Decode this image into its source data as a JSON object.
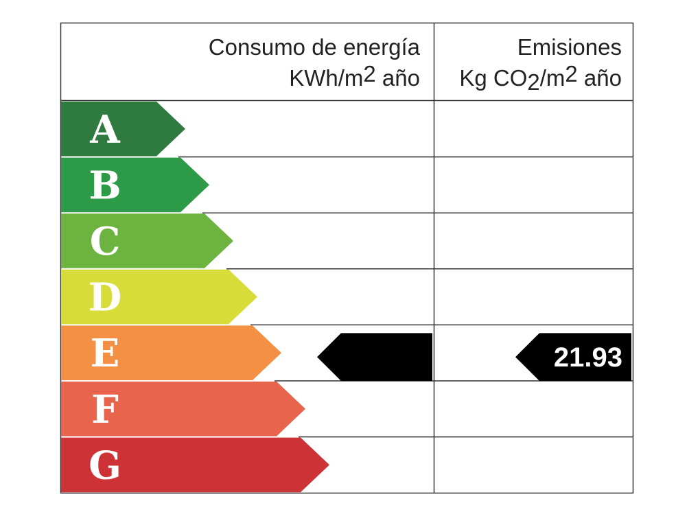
{
  "header": {
    "consumption": {
      "title": "Consumo de energía",
      "unit": [
        "KWh/m",
        "2",
        " año"
      ]
    },
    "emissions": {
      "title": "Emisiones",
      "unit": [
        "Kg CO",
        "2",
        "/m",
        "2",
        " año"
      ]
    }
  },
  "grades": [
    {
      "letter": "A",
      "color": "#2e7a3f"
    },
    {
      "letter": "B",
      "color": "#2c9a47"
    },
    {
      "letter": "C",
      "color": "#6cb33f"
    },
    {
      "letter": "D",
      "color": "#d8dc38"
    },
    {
      "letter": "E",
      "color": "#f39044"
    },
    {
      "letter": "F",
      "color": "#e9644c"
    },
    {
      "letter": "G",
      "color": "#cc3236"
    }
  ],
  "consumption": {
    "rating": "E"
  },
  "emissions": {
    "rating": "E",
    "value": 21.93
  }
}
